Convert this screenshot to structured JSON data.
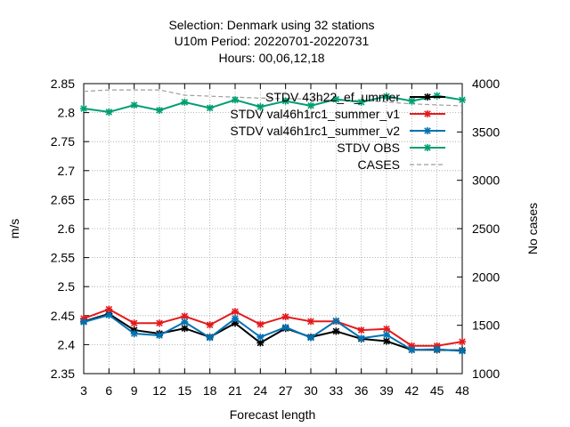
{
  "chart_data": {
    "type": "line",
    "title_lines": [
      "Selection: Denmark using    32 stations",
      "U10m   Period: 20220701-20220731",
      "Hours:  00,06,12,18"
    ],
    "xlabel": "Forecast length",
    "ylabel": "m/s",
    "y2label": "No cases",
    "x": [
      3,
      6,
      9,
      12,
      15,
      18,
      21,
      24,
      27,
      30,
      33,
      36,
      39,
      42,
      45,
      48
    ],
    "xlim": [
      3,
      48
    ],
    "ylim": [
      2.35,
      2.85
    ],
    "y2lim": [
      1000,
      4000
    ],
    "xticks": [
      "3",
      "6",
      "9",
      "12",
      "15",
      "18",
      "21",
      "24",
      "27",
      "30",
      "33",
      "36",
      "39",
      "42",
      "45",
      "48"
    ],
    "yticks": [
      "2.35",
      "2.4",
      "2.45",
      "2.5",
      "2.55",
      "2.6",
      "2.65",
      "2.7",
      "2.75",
      "2.8",
      "2.85"
    ],
    "y2ticks": [
      "1000",
      "1500",
      "2000",
      "2500",
      "3000",
      "3500",
      "4000"
    ],
    "grid": true,
    "legend_position": "top-right",
    "legend": [
      {
        "label": "STDV 43h22_ef_ummer",
        "color": "#000000"
      },
      {
        "label": "STDV val46h1rc1_summer_v1",
        "color": "#e41a1c"
      },
      {
        "label": "STDV val46h1rc1_summer_v2",
        "color": "#0072b2"
      },
      {
        "label": "STDV OBS",
        "color": "#009e73"
      },
      {
        "label": "CASES",
        "color": "#9e9e9e"
      }
    ],
    "series": [
      {
        "name": "STDV 43h22_ef_ummer",
        "axis": "y",
        "color": "#000000",
        "values": [
          2.44,
          2.453,
          2.425,
          2.419,
          2.428,
          2.413,
          2.437,
          2.403,
          2.428,
          2.413,
          2.423,
          2.41,
          2.406,
          2.391,
          2.391,
          2.39
        ]
      },
      {
        "name": "STDV val46h1rc1_summer_v1",
        "axis": "y",
        "color": "#e41a1c",
        "values": [
          2.445,
          2.461,
          2.437,
          2.437,
          2.449,
          2.434,
          2.457,
          2.435,
          2.448,
          2.44,
          2.44,
          2.425,
          2.427,
          2.398,
          2.398,
          2.405
        ]
      },
      {
        "name": "STDV val46h1rc1_summer_v2",
        "axis": "y",
        "color": "#0072b2",
        "values": [
          2.439,
          2.451,
          2.419,
          2.416,
          2.439,
          2.412,
          2.445,
          2.413,
          2.43,
          2.412,
          2.441,
          2.411,
          2.417,
          2.391,
          2.392,
          2.389
        ]
      },
      {
        "name": "STDV OBS",
        "axis": "y",
        "color": "#009e73",
        "values": [
          2.807,
          2.801,
          2.813,
          2.804,
          2.818,
          2.808,
          2.822,
          2.81,
          2.82,
          2.812,
          2.823,
          2.818,
          2.828,
          2.82,
          2.829,
          2.822
        ]
      },
      {
        "name": "CASES",
        "axis": "y2",
        "color": "#9e9e9e",
        "dashed": true,
        "values": [
          3920,
          3935,
          3935,
          3935,
          3880,
          3870,
          3860,
          3850,
          3845,
          3840,
          3830,
          3825,
          3810,
          3790,
          3780,
          3770
        ]
      }
    ]
  }
}
